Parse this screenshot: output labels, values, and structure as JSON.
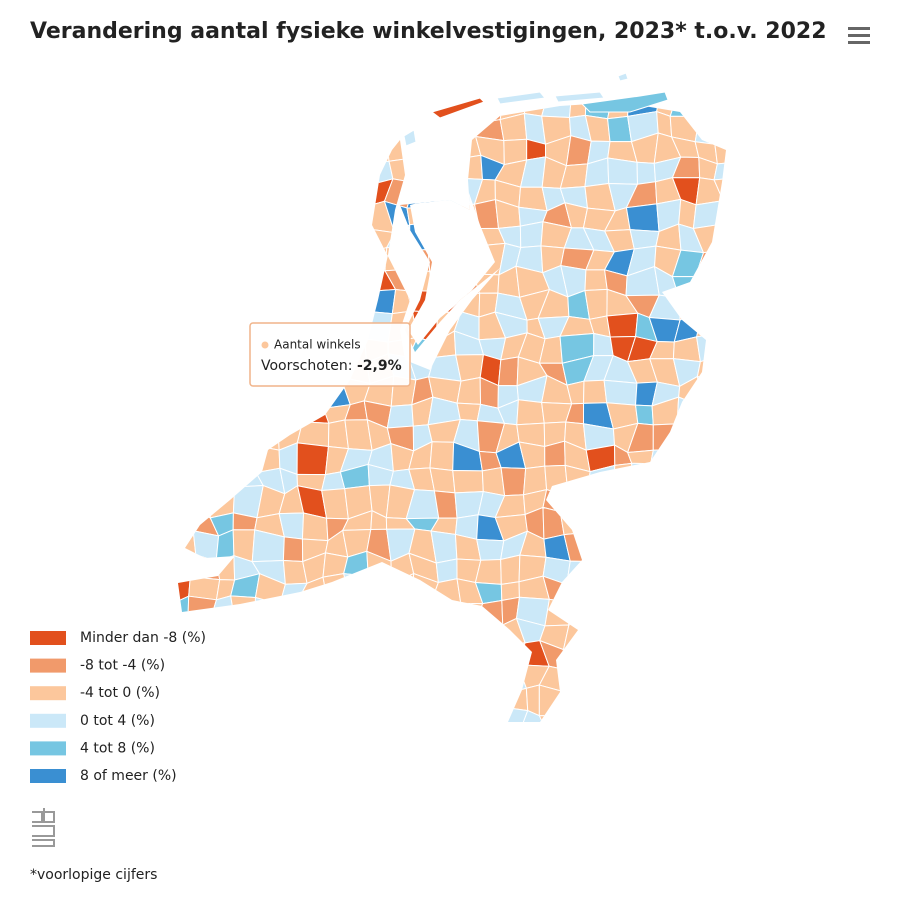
{
  "title": "Verandering aantal fysieke winkelvestigingen, 2023* t.o.v. 2022",
  "legend": {
    "items": [
      {
        "label": "Minder dan -8 (%)",
        "color": "#e2501d"
      },
      {
        "label": "-8 tot -4 (%)",
        "color": "#f19a6b"
      },
      {
        "label": "-4 tot 0 (%)",
        "color": "#fcc79c"
      },
      {
        "label": "0 tot 4 (%)",
        "color": "#cbe8f8"
      },
      {
        "label": "4 tot 8 (%)",
        "color": "#76c6e2"
      },
      {
        "label": "8 of meer (%)",
        "color": "#3a8fd2"
      }
    ]
  },
  "tooltip": {
    "series": "Aantal winkels",
    "point": "Voorschoten:",
    "value": "-2,9%"
  },
  "footnote": "*voorlopige cijfers"
}
